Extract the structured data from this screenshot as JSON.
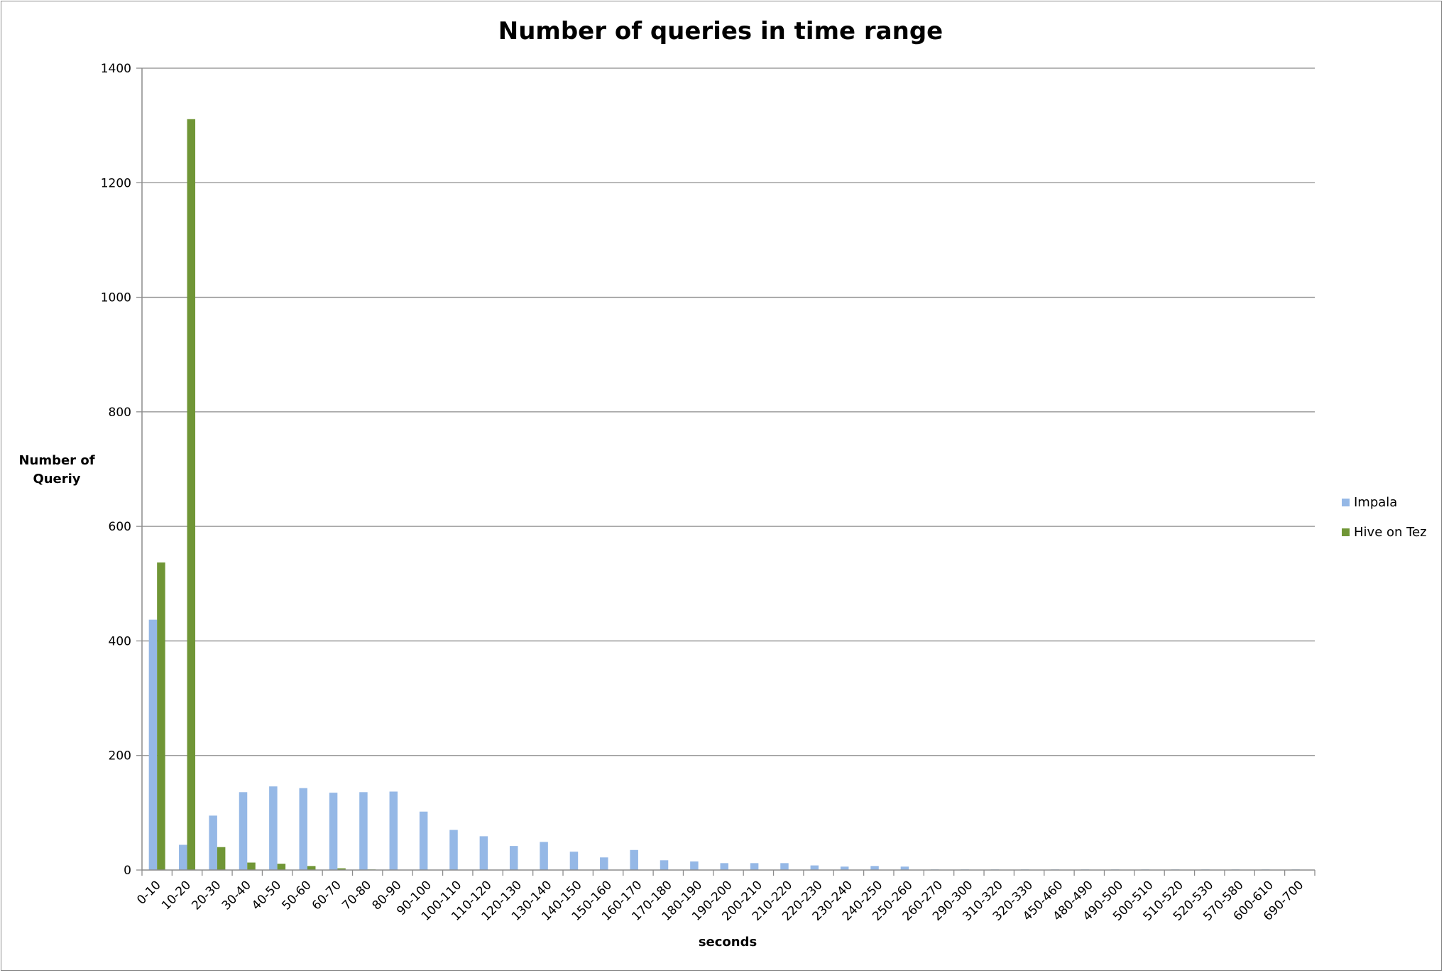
{
  "chart_data": {
    "type": "bar",
    "title": "Number of queries in time range",
    "xlabel": "seconds",
    "ylabel": "Number of Queriy",
    "ylim": [
      0,
      1400
    ],
    "yticks": [
      0,
      200,
      400,
      600,
      800,
      1000,
      1200,
      1400
    ],
    "grid": true,
    "legend_position": "right",
    "categories": [
      "0-10",
      "10-20",
      "20-30",
      "30-40",
      "40-50",
      "50-60",
      "60-70",
      "70-80",
      "80-90",
      "90-100",
      "100-110",
      "110-120",
      "120-130",
      "130-140",
      "140-150",
      "150-160",
      "160-170",
      "170-180",
      "180-190",
      "190-200",
      "200-210",
      "210-220",
      "220-230",
      "230-240",
      "240-250",
      "250-260",
      "260-270",
      "290-300",
      "310-320",
      "320-330",
      "450-460",
      "480-490",
      "490-500",
      "500-510",
      "510-520",
      "520-530",
      "570-580",
      "600-610",
      "690-700"
    ],
    "series": [
      {
        "name": "Impala",
        "color": "#95b8e6",
        "values": [
          437,
          44,
          95,
          136,
          146,
          143,
          135,
          136,
          137,
          102,
          70,
          59,
          42,
          49,
          32,
          22,
          35,
          17,
          15,
          12,
          12,
          12,
          8,
          6,
          7,
          6,
          1,
          1,
          1,
          1,
          1,
          1,
          1,
          1,
          1,
          1,
          1,
          1,
          1
        ]
      },
      {
        "name": "Hive on Tez",
        "color": "#709636",
        "values": [
          537,
          1311,
          40,
          13,
          11,
          7,
          3,
          1,
          0,
          0,
          0,
          0,
          0,
          0,
          0,
          0,
          0,
          0,
          0,
          0,
          0,
          0,
          0,
          0,
          0,
          0,
          0,
          0,
          0,
          0,
          0,
          0,
          0,
          0,
          0,
          0,
          0,
          0,
          0
        ]
      }
    ]
  }
}
